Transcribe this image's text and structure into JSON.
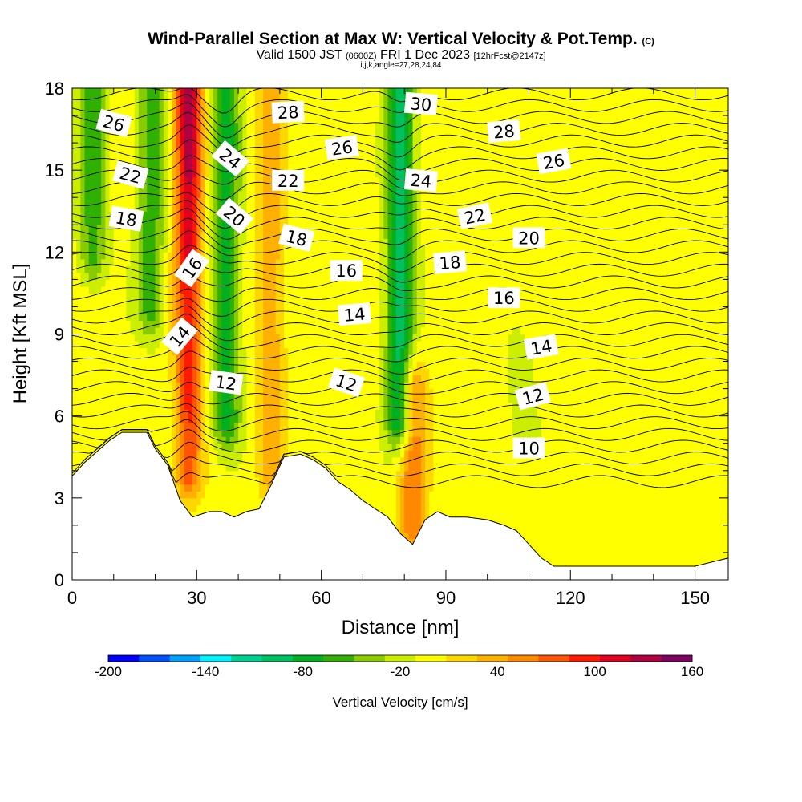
{
  "header": {
    "title": "Wind-Parallel Section at Max W: Vertical Velocity & Pot.Temp.",
    "copyright": "(C)",
    "valid_prefix": "Valid 1500 JST",
    "valid_utc": "(0600Z)",
    "valid_date": "FRI 1 Dec 2023",
    "forecast_info": "[12hrFcst@2147z]",
    "indices": "i,j,k,angle=27,28,24,84"
  },
  "chart_data": {
    "type": "heatmap",
    "title": "Wind-Parallel Section at Max W: Vertical Velocity & Pot.Temp.",
    "xlabel": "Distance [nm]",
    "ylabel": "Height [Kft MSL]",
    "xlim": [
      0,
      158
    ],
    "ylim": [
      0,
      18
    ],
    "x_ticks": [
      0,
      30,
      60,
      90,
      120,
      150
    ],
    "y_ticks": [
      0,
      3,
      6,
      9,
      12,
      15,
      18
    ],
    "colorbar": {
      "label": "Vertical Velocity [cm/s]",
      "min": -200,
      "max": 160,
      "step": 20,
      "tick_labels": [
        "-200",
        "-140",
        "-80",
        "-20",
        "40",
        "100",
        "160"
      ],
      "colors": [
        "#0000ff",
        "#0050ff",
        "#00a0ff",
        "#00f0ff",
        "#00d090",
        "#00c060",
        "#00b020",
        "#30b000",
        "#88cc00",
        "#ccee00",
        "#ffff00",
        "#ffd700",
        "#ffb000",
        "#ff8800",
        "#ff5500",
        "#ff1a00",
        "#e00020",
        "#b00040",
        "#800060"
      ]
    },
    "terrain_kft": [
      [
        0,
        3.8
      ],
      [
        3,
        4.3
      ],
      [
        6,
        4.7
      ],
      [
        9,
        5.1
      ],
      [
        12,
        5.4
      ],
      [
        15,
        5.4
      ],
      [
        18,
        5.4
      ],
      [
        20,
        4.8
      ],
      [
        23,
        4.2
      ],
      [
        26,
        2.9
      ],
      [
        29,
        2.3
      ],
      [
        33,
        2.5
      ],
      [
        36,
        2.5
      ],
      [
        39,
        2.3
      ],
      [
        42,
        2.5
      ],
      [
        45,
        2.6
      ],
      [
        48,
        3.5
      ],
      [
        51,
        4.5
      ],
      [
        55,
        4.6
      ],
      [
        58,
        4.4
      ],
      [
        61,
        4.1
      ],
      [
        64,
        3.6
      ],
      [
        67,
        3.3
      ],
      [
        70,
        2.9
      ],
      [
        73,
        2.6
      ],
      [
        76,
        2.3
      ],
      [
        79,
        1.7
      ],
      [
        82,
        1.3
      ],
      [
        85,
        2.2
      ],
      [
        88,
        2.5
      ],
      [
        91,
        2.3
      ],
      [
        95,
        2.3
      ],
      [
        100,
        2.2
      ],
      [
        104,
        2.0
      ],
      [
        107,
        1.8
      ],
      [
        110,
        1.3
      ],
      [
        113,
        0.8
      ],
      [
        116,
        0.5
      ],
      [
        120,
        0.5
      ],
      [
        150,
        0.5
      ],
      [
        158,
        0.8
      ]
    ],
    "w_field_features_cm_s": [
      {
        "x": 28,
        "y_range": [
          4,
          18
        ],
        "peak": 150
      },
      {
        "x": 37,
        "y_range": [
          6,
          18
        ],
        "peak": -80
      },
      {
        "x": 48,
        "y_range": [
          4,
          18
        ],
        "peak": 45
      },
      {
        "x": 79,
        "y_range": [
          6,
          18
        ],
        "peak": -100
      },
      {
        "x": 82,
        "y_range": [
          2,
          7
        ],
        "peak": 70
      },
      {
        "x": 5,
        "y_range": [
          12,
          18
        ],
        "peak": -60
      },
      {
        "x": 19,
        "y_range": [
          10,
          18
        ],
        "peak": -60
      },
      {
        "x": 108,
        "y_range": [
          6,
          8
        ],
        "peak": -20
      }
    ],
    "contour_labels": [
      {
        "text": "26",
        "x": 10,
        "y": 16.7,
        "rotate": 15
      },
      {
        "text": "22",
        "x": 14,
        "y": 14.8,
        "rotate": 15
      },
      {
        "text": "18",
        "x": 13,
        "y": 13.2,
        "rotate": 10
      },
      {
        "text": "16",
        "x": 29,
        "y": 11.4,
        "rotate": -55
      },
      {
        "text": "14",
        "x": 26,
        "y": 8.9,
        "rotate": -50
      },
      {
        "text": "24",
        "x": 38,
        "y": 15.4,
        "rotate": 40
      },
      {
        "text": "20",
        "x": 39,
        "y": 13.3,
        "rotate": 40
      },
      {
        "text": "12",
        "x": 37,
        "y": 7.2,
        "rotate": 8
      },
      {
        "text": "28",
        "x": 52,
        "y": 17.1,
        "rotate": -3
      },
      {
        "text": "22",
        "x": 52,
        "y": 14.6,
        "rotate": 0
      },
      {
        "text": "18",
        "x": 54,
        "y": 12.5,
        "rotate": 15
      },
      {
        "text": "26",
        "x": 65,
        "y": 15.8,
        "rotate": -8
      },
      {
        "text": "16",
        "x": 66,
        "y": 11.3,
        "rotate": 0
      },
      {
        "text": "14",
        "x": 68,
        "y": 9.7,
        "rotate": -5
      },
      {
        "text": "12",
        "x": 66,
        "y": 7.2,
        "rotate": 18
      },
      {
        "text": "30",
        "x": 84,
        "y": 17.4,
        "rotate": 5
      },
      {
        "text": "24",
        "x": 84,
        "y": 14.6,
        "rotate": 5
      },
      {
        "text": "18",
        "x": 91,
        "y": 11.6,
        "rotate": -5
      },
      {
        "text": "22",
        "x": 97,
        "y": 13.3,
        "rotate": -12
      },
      {
        "text": "28",
        "x": 104,
        "y": 16.4,
        "rotate": -5
      },
      {
        "text": "20",
        "x": 110,
        "y": 12.5,
        "rotate": 0
      },
      {
        "text": "16",
        "x": 104,
        "y": 10.3,
        "rotate": 0
      },
      {
        "text": "26",
        "x": 116,
        "y": 15.3,
        "rotate": -10
      },
      {
        "text": "14",
        "x": 113,
        "y": 8.5,
        "rotate": -10
      },
      {
        "text": "12",
        "x": 111,
        "y": 6.7,
        "rotate": -15
      },
      {
        "text": "10",
        "x": 110,
        "y": 4.8,
        "rotate": 0
      }
    ]
  }
}
